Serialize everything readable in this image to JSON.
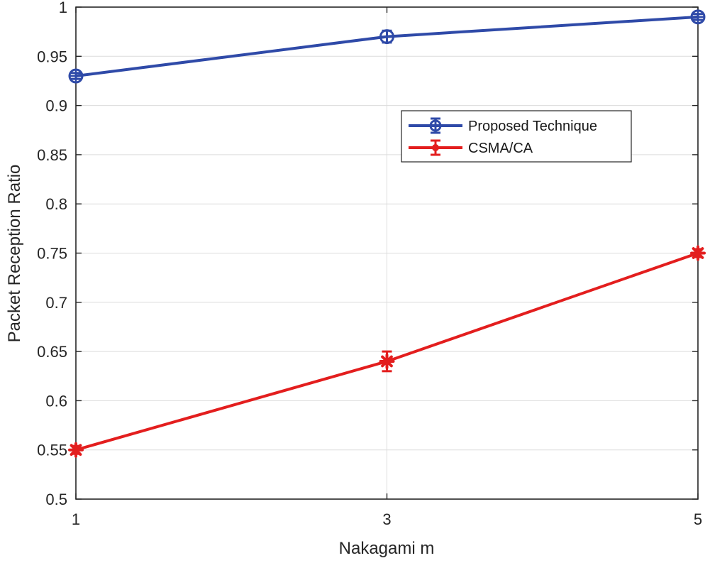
{
  "chart_data": {
    "type": "line",
    "title": "",
    "xlabel": "Nakagami m",
    "ylabel": "Packet Reception Ratio",
    "x": [
      1,
      3,
      5
    ],
    "xlim": [
      1,
      5
    ],
    "ylim": [
      0.5,
      1
    ],
    "xticks": [
      "1",
      "3",
      "5"
    ],
    "yticks": [
      "0.5",
      "0.55",
      "0.6",
      "0.65",
      "0.7",
      "0.75",
      "0.8",
      "0.85",
      "0.9",
      "0.95",
      "1"
    ],
    "grid": true,
    "legend_position": "upper-right-inside",
    "error_bars": true,
    "series": [
      {
        "name": "Proposed Technique",
        "color": "#2f4aa8",
        "marker": "circle-cross",
        "values": [
          0.93,
          0.97,
          0.99
        ],
        "errors": [
          0.003,
          0.006,
          0.003
        ]
      },
      {
        "name": "CSMA/CA",
        "color": "#e31e1e",
        "marker": "star",
        "values": [
          0.55,
          0.64,
          0.75
        ],
        "errors": [
          0.004,
          0.01,
          0.004
        ]
      }
    ]
  }
}
